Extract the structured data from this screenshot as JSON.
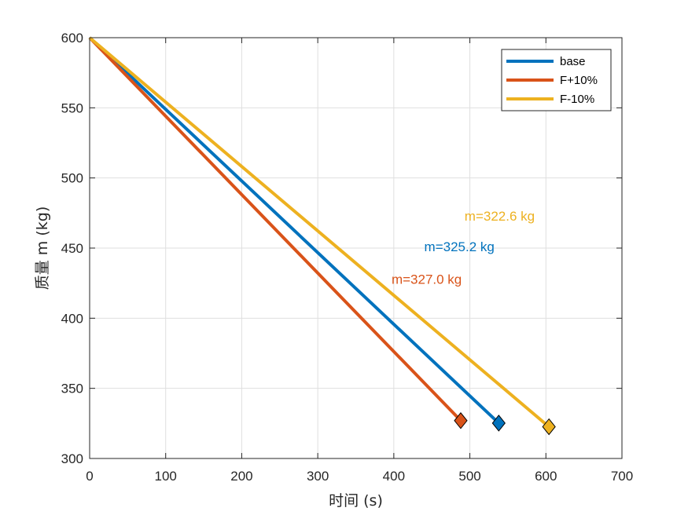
{
  "chart_data": {
    "type": "line",
    "xlabel": "时间 (s)",
    "ylabel": "质量 m (kg)",
    "xlim": [
      0,
      700
    ],
    "ylim": [
      300,
      600
    ],
    "xticks": [
      0,
      100,
      200,
      300,
      400,
      500,
      600,
      700
    ],
    "yticks": [
      300,
      350,
      400,
      450,
      500,
      550,
      600
    ],
    "grid": true,
    "legend_position": "top-right",
    "series": [
      {
        "name": "base",
        "color": "#0072BD",
        "x": [
          0,
          538
        ],
        "y": [
          600,
          325.2
        ],
        "end_marker": "diamond",
        "annotation": {
          "text": "m=325.2 kg",
          "x": 440,
          "y": 451
        }
      },
      {
        "name": "F+10%",
        "color": "#D95319",
        "x": [
          0,
          488
        ],
        "y": [
          600,
          327.0
        ],
        "end_marker": "diamond",
        "annotation": {
          "text": "m=327.0 kg",
          "x": 397,
          "y": 428
        }
      },
      {
        "name": "F-10%",
        "color": "#EDB120",
        "x": [
          0,
          604
        ],
        "y": [
          600,
          322.6
        ],
        "end_marker": "diamond",
        "annotation": {
          "text": "m=322.6 kg",
          "x": 493,
          "y": 473
        }
      }
    ]
  }
}
